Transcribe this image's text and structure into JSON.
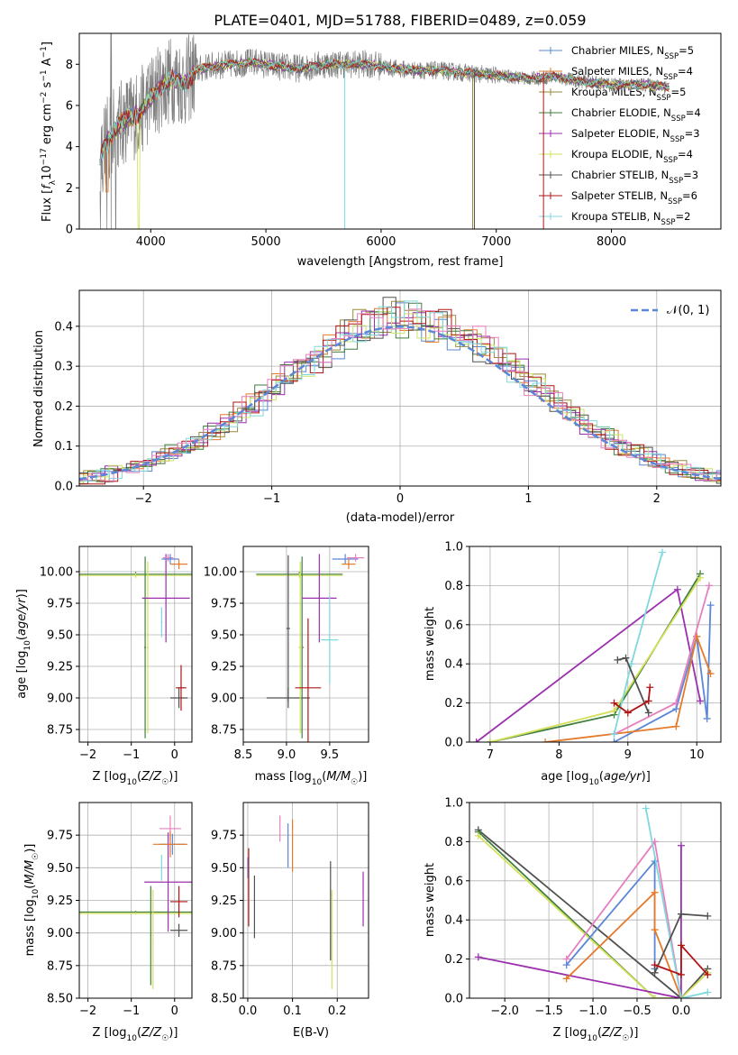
{
  "colors": {
    "Chabrier MILES": "#5b87d6",
    "Salpeter MILES": "#e57a2a",
    "Kroupa MILES": "#9a8a3a",
    "Chabrier ELODIE": "#3f7e3f",
    "Salpeter ELODIE": "#9b2fae",
    "Kroupa ELODIE": "#d4e05a",
    "Chabrier STELIB": "#505050",
    "Salpeter STELIB": "#b01515",
    "Kroupa STELIB": "#7fd8dc",
    "pink": "#e77fbf",
    "lime": "#c6e86a",
    "data": "#7f7f7f",
    "normal": "#5b87d6"
  },
  "chart_data": [
    {
      "id": "spectrum",
      "type": "line",
      "title": "PLATE=0401, MJD=51788, FIBERID=0489, z=0.059",
      "xlabel": "wavelength [Angstrom, rest frame]",
      "ylabel": "Flux [f_λ 10^-17 erg cm^-2 s^-1 A^-1]",
      "xlim": [
        3380,
        8950
      ],
      "ylim": [
        0,
        9.5
      ],
      "xticks": [
        "4000",
        "5000",
        "6000",
        "7000",
        "8000"
      ],
      "yticks": [
        "0",
        "2",
        "4",
        "6",
        "8"
      ],
      "legend_position": "top-right",
      "legend": [
        {
          "label": "Chabrier MILES, N",
          "sub": "SSP",
          "val": "=5",
          "color": "#5b87d6"
        },
        {
          "label": "Salpeter MILES, N",
          "sub": "SSP",
          "val": "=4",
          "color": "#e57a2a"
        },
        {
          "label": "Kroupa MILES, N",
          "sub": "SSP",
          "val": "=5",
          "color": "#9a8a3a"
        },
        {
          "label": "Chabrier ELODIE, N",
          "sub": "SSP",
          "val": "=4",
          "color": "#3f7e3f"
        },
        {
          "label": "Salpeter ELODIE, N",
          "sub": "SSP",
          "val": "=3",
          "color": "#9b2fae"
        },
        {
          "label": "Kroupa ELODIE, N",
          "sub": "SSP",
          "val": "=4",
          "color": "#d4e05a"
        },
        {
          "label": "Chabrier STELIB, N",
          "sub": "SSP",
          "val": "=3",
          "color": "#505050"
        },
        {
          "label": "Salpeter STELIB, N",
          "sub": "SSP",
          "val": "=6",
          "color": "#b01515"
        },
        {
          "label": "Kroupa STELIB, N",
          "sub": "SSP",
          "val": "=2",
          "color": "#7fd8dc"
        }
      ],
      "model_continuum": [
        [
          3560,
          3.6
        ],
        [
          3640,
          4.4
        ],
        [
          3720,
          5.0
        ],
        [
          3800,
          5.4
        ],
        [
          3900,
          5.6
        ],
        [
          4000,
          6.4
        ],
        [
          4100,
          7.0
        ],
        [
          4200,
          7.3
        ],
        [
          4300,
          7.1
        ],
        [
          4400,
          7.7
        ],
        [
          4500,
          7.9
        ],
        [
          4700,
          8.0
        ],
        [
          4900,
          8.1
        ],
        [
          5100,
          7.9
        ],
        [
          5300,
          7.8
        ],
        [
          5500,
          8.0
        ],
        [
          5700,
          8.0
        ],
        [
          5900,
          8.0
        ],
        [
          6100,
          7.8
        ],
        [
          6300,
          7.7
        ],
        [
          6500,
          7.7
        ],
        [
          6700,
          7.6
        ],
        [
          6900,
          7.5
        ],
        [
          7100,
          7.4
        ],
        [
          7300,
          7.3
        ],
        [
          7500,
          7.4
        ],
        [
          7700,
          7.2
        ],
        [
          8000,
          7.0
        ],
        [
          8300,
          7.0
        ],
        [
          8500,
          6.9
        ]
      ]
    },
    {
      "id": "residuals",
      "type": "line",
      "xlabel": "(data-model)/error",
      "ylabel": "Normed distribution",
      "xlim": [
        -2.5,
        2.5
      ],
      "ylim": [
        0,
        0.49
      ],
      "xticks": [
        "−2",
        "−1",
        "0",
        "1",
        "2"
      ],
      "yticks": [
        "0.0",
        "0.1",
        "0.2",
        "0.3",
        "0.4"
      ],
      "grid": true,
      "legend_position": "top-right",
      "legend": [
        {
          "label": "𝒩(0, 1)",
          "color": "#5b87d6",
          "style": "dashed"
        }
      ]
    },
    {
      "id": "age-vs-Z",
      "type": "scatter",
      "xlabel": "Z [log₁₀(Z/Z☉)]",
      "ylabel": "age  [log₁₀(age/yr)]",
      "xlim": [
        -2.2,
        0.4
      ],
      "ylim": [
        8.65,
        10.2
      ],
      "xticks": [
        "−2",
        "−1",
        "0"
      ],
      "yticks": [
        "8.75",
        "9.00",
        "9.25",
        "9.50",
        "9.75",
        "10.00"
      ],
      "grid": true,
      "series": [
        {
          "color": "#3f7e3f",
          "x": -0.9,
          "xerr": 1.3,
          "y": 9.98,
          "yerr": 0.02
        },
        {
          "color": "#d4e05a",
          "x": -0.9,
          "xerr": 1.3,
          "y": 9.97,
          "yerr": 0.02
        },
        {
          "color": "#3f7e3f",
          "x": -0.68,
          "xerr": 0.02,
          "y": 9.4,
          "yerr": 0.72
        },
        {
          "color": "#d4e05a",
          "x": -0.62,
          "xerr": 0.02,
          "y": 9.4,
          "yerr": 0.68
        },
        {
          "color": "#9b2fae",
          "x": -0.2,
          "xerr": 0.55,
          "y": 9.79,
          "yerr": 0.35
        },
        {
          "color": "#e77fbf",
          "x": -0.15,
          "xerr": 0.12,
          "y": 10.11,
          "yerr": 0.03
        },
        {
          "color": "#5b87d6",
          "x": -0.1,
          "xerr": 0.2,
          "y": 10.1,
          "yerr": 0.04
        },
        {
          "color": "#e57a2a",
          "x": 0.1,
          "xerr": 0.2,
          "y": 10.06,
          "yerr": 0.04
        },
        {
          "color": "#7fd8dc",
          "x": -0.3,
          "xerr": 0.02,
          "y": 9.6,
          "yerr": 0.12
        },
        {
          "color": "#505050",
          "x": 0.1,
          "xerr": 0.2,
          "y": 9.0,
          "yerr": 0.08
        },
        {
          "color": "#b01515",
          "x": 0.15,
          "xerr": 0.12,
          "y": 9.08,
          "yerr": 0.18
        }
      ]
    },
    {
      "id": "age-vs-mass",
      "type": "scatter",
      "xlabel": "mass [log₁₀(M/M☉)]",
      "xlim": [
        8.5,
        9.95
      ],
      "ylim": [
        8.65,
        10.2
      ],
      "xticks": [
        "8.5",
        "9.0",
        "9.5"
      ],
      "yticks": [
        "8.75",
        "9.00",
        "9.25",
        "9.50",
        "9.75",
        "10.00"
      ],
      "grid": true,
      "series": [
        {
          "color": "#3f7e3f",
          "x": 9.15,
          "xerr": 0.5,
          "y": 9.98,
          "yerr": 0.02
        },
        {
          "color": "#d4e05a",
          "x": 9.15,
          "xerr": 0.5,
          "y": 9.97,
          "yerr": 0.02
        },
        {
          "color": "#505050",
          "x": 9.02,
          "xerr": 0.25,
          "y": 9.0,
          "yerr": 0.08
        },
        {
          "color": "#505050",
          "x": 9.02,
          "xerr": 0.02,
          "y": 9.55,
          "yerr": 0.58
        },
        {
          "color": "#3f7e3f",
          "x": 9.18,
          "xerr": 0.02,
          "y": 9.4,
          "yerr": 0.72
        },
        {
          "color": "#d4e05a",
          "x": 9.16,
          "xerr": 0.02,
          "y": 9.4,
          "yerr": 0.68
        },
        {
          "color": "#9b2fae",
          "x": 9.38,
          "xerr": 0.2,
          "y": 9.79,
          "yerr": 0.35
        },
        {
          "color": "#b01515",
          "x": 9.25,
          "xerr": 0.15,
          "y": 9.08,
          "yerr": 0.55
        },
        {
          "color": "#7fd8dc",
          "x": 9.5,
          "xerr": 0.1,
          "y": 9.46,
          "yerr": 0.35
        },
        {
          "color": "#5b87d6",
          "x": 9.68,
          "xerr": 0.15,
          "y": 10.1,
          "yerr": 0.04
        },
        {
          "color": "#e57a2a",
          "x": 9.72,
          "xerr": 0.08,
          "y": 10.06,
          "yerr": 0.04
        },
        {
          "color": "#e77fbf",
          "x": 9.8,
          "xerr": 0.1,
          "y": 10.11,
          "yerr": 0.03
        }
      ]
    },
    {
      "id": "massweight-vs-age",
      "type": "line",
      "xlabel": "age  [log₁₀(age/yr)]",
      "ylabel": "mass weight",
      "xlim": [
        6.7,
        10.35
      ],
      "ylim": [
        0,
        1
      ],
      "xticks": [
        "7",
        "8",
        "9",
        "10"
      ],
      "yticks": [
        "0.0",
        "0.2",
        "0.4",
        "0.6",
        "0.8",
        "1.0"
      ],
      "grid": true,
      "series": [
        {
          "color": "#9b2fae",
          "points": [
            [
              6.8,
              0.0
            ],
            [
              9.72,
              0.78
            ],
            [
              10.05,
              0.21
            ]
          ]
        },
        {
          "color": "#3f7e3f",
          "points": [
            [
              7.0,
              0.0
            ],
            [
              8.8,
              0.14
            ],
            [
              10.05,
              0.86
            ]
          ]
        },
        {
          "color": "#d4e05a",
          "points": [
            [
              7.0,
              0.0
            ],
            [
              8.8,
              0.16
            ],
            [
              10.05,
              0.84
            ]
          ]
        },
        {
          "color": "#5b87d6",
          "points": [
            [
              8.8,
              0.0
            ],
            [
              9.7,
              0.17
            ],
            [
              10.0,
              0.54
            ],
            [
              10.15,
              0.12
            ],
            [
              10.2,
              0.7
            ]
          ]
        },
        {
          "color": "#e57a2a",
          "points": [
            [
              7.8,
              0.0
            ],
            [
              9.7,
              0.08
            ],
            [
              10.0,
              0.54
            ],
            [
              10.2,
              0.35
            ]
          ]
        },
        {
          "color": "#e77fbf",
          "points": [
            [
              8.8,
              0.04
            ],
            [
              9.7,
              0.2
            ],
            [
              10.18,
              0.8
            ]
          ]
        },
        {
          "color": "#7fd8dc",
          "points": [
            [
              8.8,
              0.04
            ],
            [
              9.05,
              0.4
            ],
            [
              9.5,
              0.97
            ]
          ]
        },
        {
          "color": "#505050",
          "points": [
            [
              8.85,
              0.42
            ],
            [
              8.97,
              0.43
            ],
            [
              9.3,
              0.15
            ]
          ]
        },
        {
          "color": "#b01515",
          "points": [
            [
              8.8,
              0.2
            ],
            [
              9.0,
              0.15
            ],
            [
              9.3,
              0.21
            ],
            [
              9.32,
              0.28
            ]
          ]
        }
      ]
    },
    {
      "id": "mass-vs-Z",
      "type": "scatter",
      "xlabel": "Z [log₁₀(Z/Z☉)]",
      "ylabel": "mass [log₁₀(M/M☉)]",
      "xlim": [
        -2.2,
        0.4
      ],
      "ylim": [
        8.5,
        10.0
      ],
      "xticks": [
        "−2",
        "−1",
        "0"
      ],
      "yticks": [
        "8.50",
        "8.75",
        "9.00",
        "9.25",
        "9.50",
        "9.75"
      ],
      "grid": true,
      "series": [
        {
          "color": "#3f7e3f",
          "x": -0.9,
          "xerr": 1.3,
          "y": 9.16,
          "yerr": 0.01
        },
        {
          "color": "#d4e05a",
          "x": -0.9,
          "xerr": 1.3,
          "y": 9.15,
          "yerr": 0.01
        },
        {
          "color": "#3f7e3f",
          "x": -0.55,
          "xerr": 0.01,
          "y": 8.98,
          "yerr": 0.38
        },
        {
          "color": "#d4e05a",
          "x": -0.5,
          "xerr": 0.01,
          "y": 8.95,
          "yerr": 0.38
        },
        {
          "color": "#9b2fae",
          "x": -0.15,
          "xerr": 0.55,
          "y": 9.39,
          "yerr": 0.38
        },
        {
          "color": "#e77fbf",
          "x": -0.1,
          "xerr": 0.25,
          "y": 9.8,
          "yerr": 0.1
        },
        {
          "color": "#5b87d6",
          "x": -0.05,
          "xerr": 0.3,
          "y": 9.68,
          "yerr": 0.08
        },
        {
          "color": "#e57a2a",
          "x": -0.1,
          "xerr": 0.4,
          "y": 9.68,
          "yerr": 0.1
        },
        {
          "color": "#7fd8dc",
          "x": -0.3,
          "xerr": 0.02,
          "y": 9.5,
          "yerr": 0.1
        },
        {
          "color": "#505050",
          "x": 0.1,
          "xerr": 0.2,
          "y": 9.02,
          "yerr": 0.05
        },
        {
          "color": "#b01515",
          "x": 0.1,
          "xerr": 0.2,
          "y": 9.24,
          "yerr": 0.12
        }
      ]
    },
    {
      "id": "mass-vs-EBV",
      "type": "scatter",
      "xlabel": "E(B-V)",
      "xlim": [
        -0.01,
        0.27
      ],
      "ylim": [
        8.5,
        10.0
      ],
      "xticks": [
        "0.0",
        "0.1",
        "0.2"
      ],
      "yticks": [
        "8.50",
        "8.75",
        "9.00",
        "9.25",
        "9.50",
        "9.75"
      ],
      "grid": true,
      "series": [
        {
          "color": "#5b87d6",
          "x": 0.0,
          "y": 9.5,
          "yerr": 0.08
        },
        {
          "color": "#b01515",
          "x": 0.002,
          "y": 9.35,
          "yerr": 0.3
        },
        {
          "color": "#505050",
          "x": 0.015,
          "y": 9.2,
          "yerr": 0.24
        },
        {
          "color": "#e77fbf",
          "x": 0.072,
          "y": 9.8,
          "yerr": 0.1
        },
        {
          "color": "#5b87d6",
          "x": 0.09,
          "y": 9.67,
          "yerr": 0.17
        },
        {
          "color": "#e57a2a",
          "x": 0.1,
          "y": 9.67,
          "yerr": 0.2
        },
        {
          "color": "#505050",
          "x": 0.185,
          "y": 9.17,
          "yerr": 0.38
        },
        {
          "color": "#d4e05a",
          "x": 0.188,
          "y": 8.95,
          "yerr": 0.38
        },
        {
          "color": "#9b2fae",
          "x": 0.258,
          "y": 9.26,
          "yerr": 0.21
        }
      ]
    },
    {
      "id": "massweight-vs-Z",
      "type": "line",
      "xlabel": "Z [log₁₀(Z/Z☉)]",
      "ylabel": "mass weight",
      "xlim": [
        -2.4,
        0.45
      ],
      "ylim": [
        0,
        1
      ],
      "xticks": [
        "−2.0",
        "−1.5",
        "−1.0",
        "−0.5",
        "0.0"
      ],
      "yticks": [
        "0.0",
        "0.2",
        "0.4",
        "0.6",
        "0.8",
        "1.0"
      ],
      "grid": true,
      "series": [
        {
          "color": "#505050",
          "points": [
            [
              -2.3,
              0.86
            ],
            [
              0.0,
              0.0
            ],
            [
              0.3,
              0.15
            ]
          ]
        },
        {
          "color": "#3f7e3f",
          "points": [
            [
              -2.3,
              0.85
            ],
            [
              -0.3,
              0.0
            ]
          ]
        },
        {
          "color": "#d4e05a",
          "points": [
            [
              -2.3,
              0.83
            ],
            [
              -0.3,
              0.0
            ],
            [
              0.0,
              0.0
            ],
            [
              0.3,
              0.13
            ]
          ]
        },
        {
          "color": "#9b2fae",
          "points": [
            [
              -2.3,
              0.21
            ],
            [
              0.0,
              0.0
            ],
            [
              0.0,
              0.78
            ]
          ]
        },
        {
          "color": "#e77fbf",
          "points": [
            [
              -1.3,
              0.2
            ],
            [
              -0.3,
              0.8
            ],
            [
              0.0,
              0.0
            ]
          ]
        },
        {
          "color": "#5b87d6",
          "points": [
            [
              -1.3,
              0.17
            ],
            [
              -0.3,
              0.7
            ],
            [
              -0.3,
              0.15
            ]
          ]
        },
        {
          "color": "#e57a2a",
          "points": [
            [
              -1.3,
              0.1
            ],
            [
              -0.3,
              0.54
            ],
            [
              -0.3,
              0.35
            ],
            [
              0.0,
              0.0
            ]
          ]
        },
        {
          "color": "#7fd8dc",
          "points": [
            [
              -0.4,
              0.97
            ],
            [
              0.0,
              0.0
            ],
            [
              0.3,
              0.03
            ]
          ]
        },
        {
          "color": "#505050",
          "points": [
            [
              -0.3,
              0.13
            ],
            [
              0.0,
              0.43
            ],
            [
              0.3,
              0.42
            ]
          ]
        },
        {
          "color": "#b01515",
          "points": [
            [
              -0.3,
              0.17
            ],
            [
              0.0,
              0.12
            ],
            [
              0.0,
              0.27
            ],
            [
              0.3,
              0.12
            ]
          ]
        }
      ]
    }
  ]
}
